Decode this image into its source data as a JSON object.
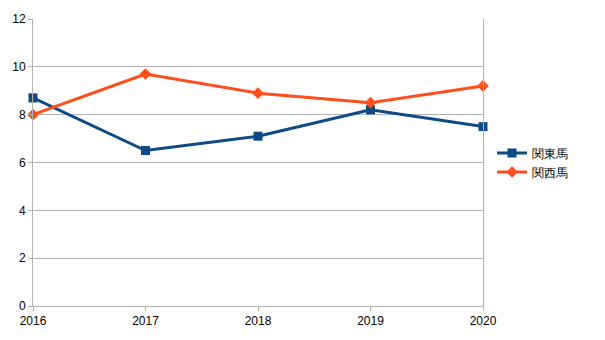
{
  "chart_data": {
    "type": "line",
    "x": [
      2016,
      2017,
      2018,
      2019,
      2020
    ],
    "series": [
      {
        "name": "関東馬",
        "color": "#0e4a84",
        "marker": "square",
        "values": [
          8.7,
          6.5,
          7.1,
          8.2,
          7.5
        ]
      },
      {
        "name": "関西馬",
        "color": "#ff4e1b",
        "marker": "diamond",
        "values": [
          8.0,
          9.7,
          8.9,
          8.5,
          9.2
        ]
      }
    ],
    "xlim": [
      2016,
      2020
    ],
    "xticks": [
      2016,
      2017,
      2018,
      2019,
      2020
    ],
    "ylim": [
      0,
      12
    ],
    "yticks": [
      0,
      2,
      4,
      6,
      8,
      10,
      12
    ],
    "grid": true,
    "legend": "right"
  }
}
